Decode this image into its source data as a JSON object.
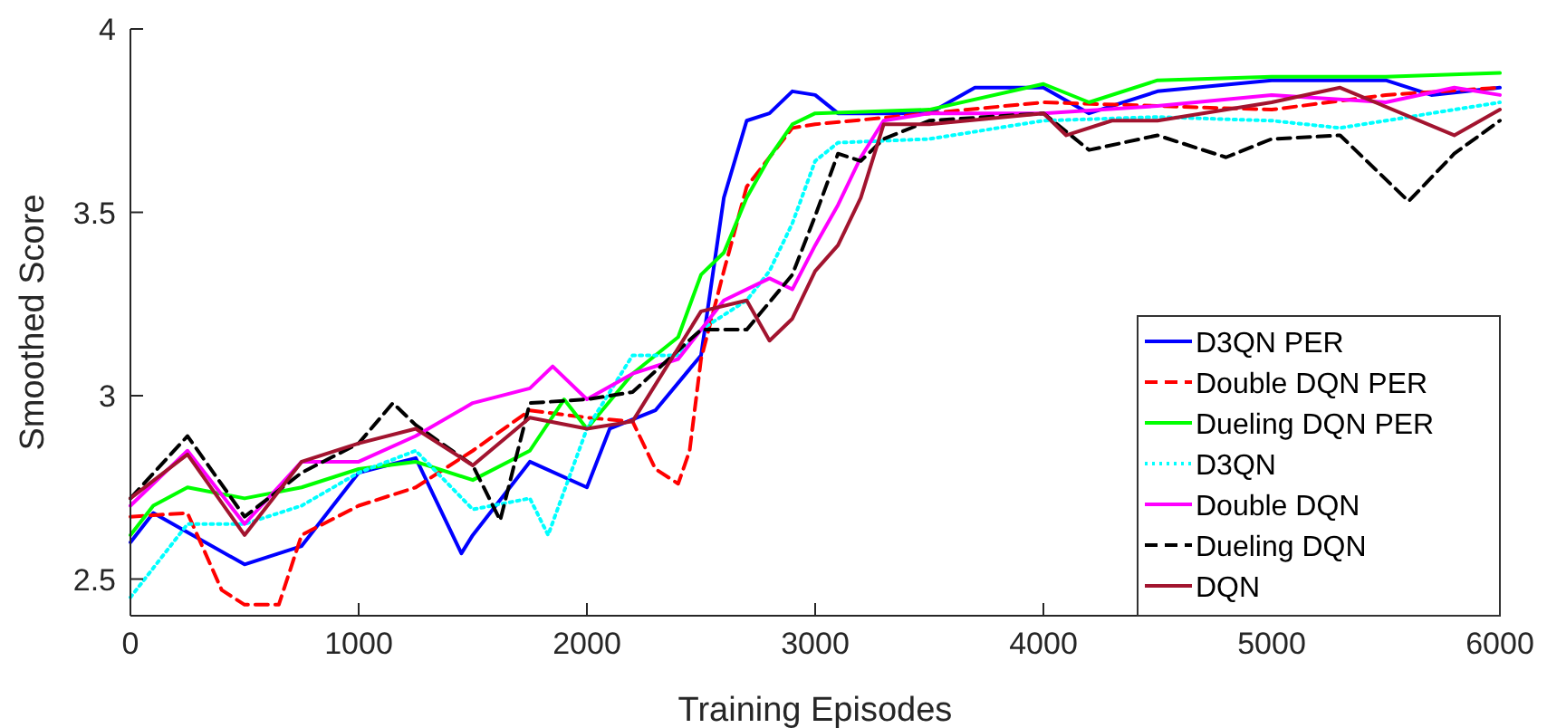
{
  "chart_data": {
    "type": "line",
    "xlabel": "Training Episodes",
    "ylabel": "Smoothed Score",
    "xlim": [
      0,
      6000
    ],
    "xticks": [
      0,
      1000,
      2000,
      3000,
      4000,
      5000,
      6000
    ],
    "ylim": [
      2.4,
      4
    ],
    "yticks": [
      2.5,
      3,
      3.5,
      4
    ],
    "legend": "bottom right",
    "grid": false,
    "series": [
      {
        "name": "D3QN PER",
        "color": "#0000ff",
        "line_style": "solid",
        "x": [
          0,
          100,
          500,
          750,
          1000,
          1250,
          1450,
          1500,
          1750,
          2000,
          2100,
          2300,
          2500,
          2600,
          2700,
          2800,
          2900,
          3000,
          3100,
          3500,
          3700,
          4000,
          4200,
          4500,
          5000,
          5500,
          5700,
          6000
        ],
        "values": [
          2.6,
          2.68,
          2.54,
          2.59,
          2.79,
          2.83,
          2.57,
          2.62,
          2.82,
          2.75,
          2.91,
          2.96,
          3.11,
          3.54,
          3.75,
          3.77,
          3.83,
          3.82,
          3.77,
          3.77,
          3.84,
          3.84,
          3.77,
          3.83,
          3.86,
          3.86,
          3.82,
          3.84
        ]
      },
      {
        "name": "Double DQN PER",
        "color": "#ff0000",
        "line_style": "dashed",
        "x": [
          0,
          250,
          400,
          500,
          650,
          750,
          1000,
          1250,
          1500,
          1750,
          2000,
          2200,
          2300,
          2400,
          2450,
          2500,
          2600,
          2700,
          2800,
          2900,
          3000,
          3500,
          4000,
          4500,
          5000,
          5500,
          6000
        ],
        "values": [
          2.67,
          2.68,
          2.47,
          2.43,
          2.43,
          2.62,
          2.7,
          2.75,
          2.85,
          2.96,
          2.94,
          2.93,
          2.8,
          2.76,
          2.85,
          3.1,
          3.34,
          3.57,
          3.65,
          3.73,
          3.74,
          3.77,
          3.8,
          3.79,
          3.78,
          3.82,
          3.84
        ]
      },
      {
        "name": "Dueling DQN PER",
        "color": "#00ff00",
        "line_style": "solid",
        "x": [
          0,
          100,
          250,
          500,
          750,
          1000,
          1250,
          1500,
          1750,
          1900,
          2000,
          2200,
          2400,
          2500,
          2600,
          2700,
          2800,
          2900,
          3000,
          3500,
          4000,
          4200,
          4500,
          5000,
          5500,
          6000
        ],
        "values": [
          2.62,
          2.7,
          2.75,
          2.72,
          2.75,
          2.8,
          2.82,
          2.77,
          2.85,
          2.99,
          2.91,
          3.06,
          3.16,
          3.33,
          3.39,
          3.54,
          3.65,
          3.74,
          3.77,
          3.78,
          3.85,
          3.8,
          3.86,
          3.87,
          3.87,
          3.88
        ]
      },
      {
        "name": "D3QN",
        "color": "#00ffff",
        "line_style": "dotted",
        "x": [
          0,
          250,
          500,
          750,
          1000,
          1250,
          1500,
          1750,
          1830,
          2000,
          2200,
          2400,
          2500,
          2700,
          2800,
          2900,
          3000,
          3100,
          3500,
          4000,
          4500,
          5000,
          5300,
          6000
        ],
        "values": [
          2.45,
          2.65,
          2.65,
          2.7,
          2.79,
          2.85,
          2.69,
          2.72,
          2.62,
          2.91,
          3.11,
          3.11,
          3.18,
          3.26,
          3.34,
          3.47,
          3.64,
          3.69,
          3.7,
          3.75,
          3.76,
          3.75,
          3.73,
          3.8
        ]
      },
      {
        "name": "Double DQN",
        "color": "#ff00ff",
        "line_style": "solid",
        "x": [
          0,
          250,
          500,
          750,
          1000,
          1250,
          1500,
          1750,
          1850,
          2000,
          2200,
          2400,
          2600,
          2800,
          2900,
          3000,
          3100,
          3200,
          3300,
          3500,
          4000,
          4500,
          5000,
          5500,
          5800,
          6000
        ],
        "values": [
          2.7,
          2.85,
          2.65,
          2.82,
          2.82,
          2.89,
          2.98,
          3.02,
          3.08,
          2.99,
          3.06,
          3.1,
          3.26,
          3.32,
          3.29,
          3.41,
          3.52,
          3.65,
          3.75,
          3.77,
          3.77,
          3.79,
          3.82,
          3.8,
          3.84,
          3.82
        ]
      },
      {
        "name": "Dueling DQN",
        "color": "#000000",
        "line_style": "dashed",
        "x": [
          0,
          250,
          500,
          750,
          1000,
          1150,
          1250,
          1500,
          1620,
          1750,
          2000,
          2200,
          2500,
          2700,
          2900,
          3000,
          3100,
          3200,
          3300,
          3500,
          4000,
          4200,
          4500,
          4800,
          5000,
          5300,
          5600,
          5800,
          6000
        ],
        "values": [
          2.72,
          2.89,
          2.67,
          2.79,
          2.87,
          2.98,
          2.92,
          2.81,
          2.66,
          2.98,
          2.99,
          3.01,
          3.18,
          3.18,
          3.33,
          3.49,
          3.66,
          3.64,
          3.7,
          3.75,
          3.77,
          3.67,
          3.71,
          3.65,
          3.7,
          3.71,
          3.53,
          3.66,
          3.75
        ]
      },
      {
        "name": "DQN",
        "color": "#a2142f",
        "line_style": "solid",
        "x": [
          0,
          250,
          500,
          750,
          1000,
          1250,
          1500,
          1750,
          2000,
          2200,
          2500,
          2700,
          2800,
          2900,
          3000,
          3100,
          3200,
          3300,
          3500,
          4000,
          4100,
          4300,
          4500,
          5000,
          5300,
          5800,
          6000
        ],
        "values": [
          2.72,
          2.84,
          2.62,
          2.82,
          2.87,
          2.91,
          2.81,
          2.94,
          2.91,
          2.93,
          3.23,
          3.26,
          3.15,
          3.21,
          3.34,
          3.41,
          3.54,
          3.74,
          3.74,
          3.77,
          3.71,
          3.75,
          3.75,
          3.8,
          3.84,
          3.71,
          3.78
        ]
      }
    ]
  }
}
